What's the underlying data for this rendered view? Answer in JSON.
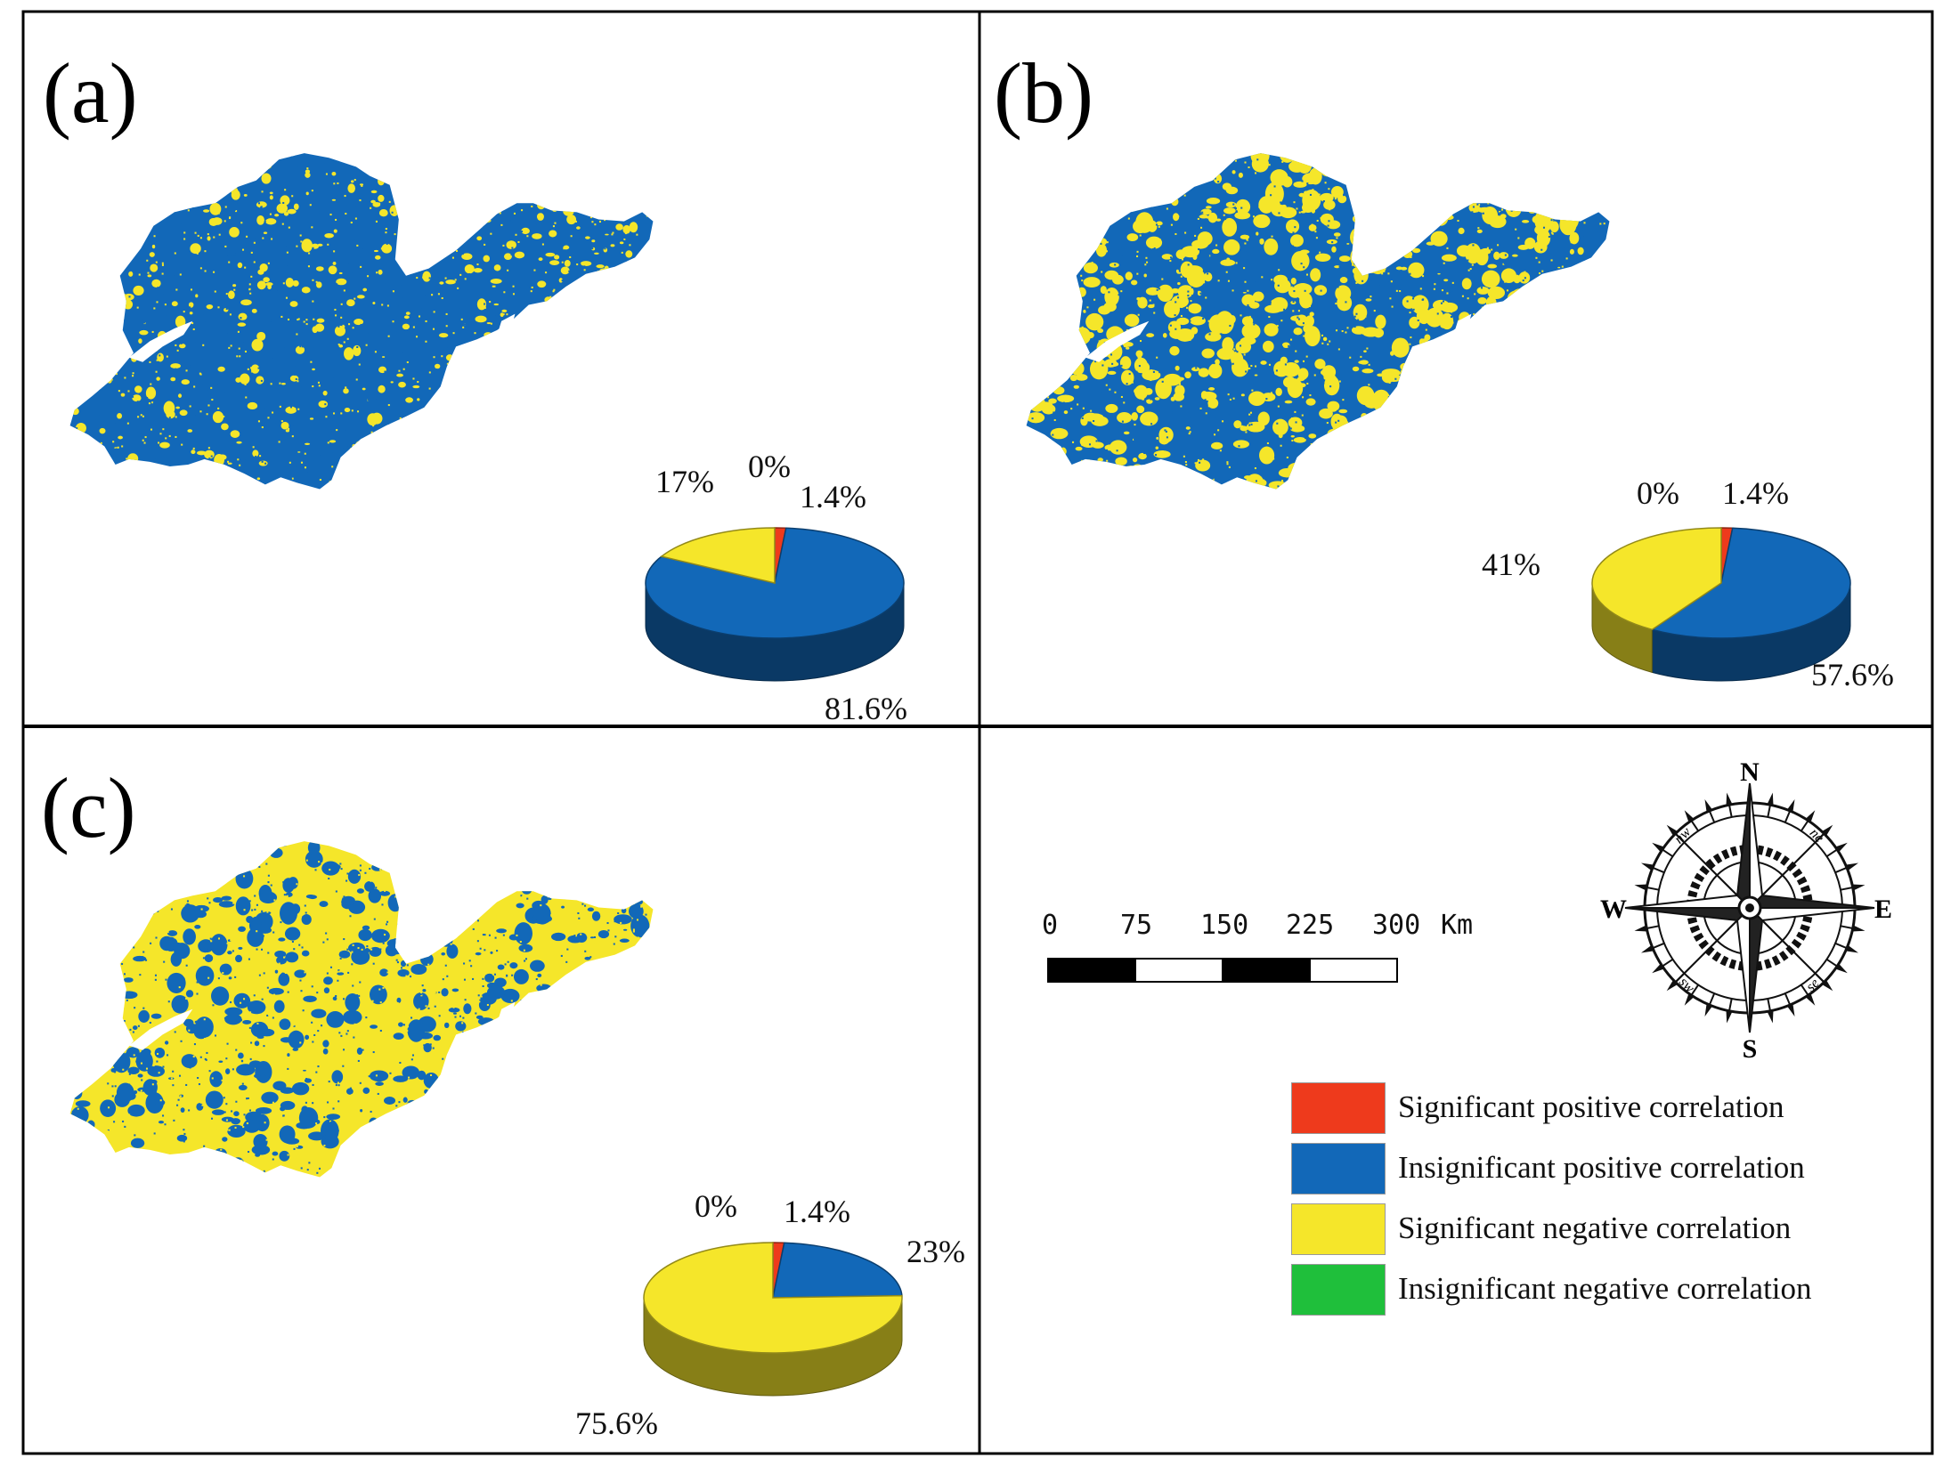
{
  "panels": [
    {
      "label": "(a)",
      "dominant": "#1268b8",
      "minor": "#f5e62a",
      "pie": {
        "segments": [
          {
            "name": "Significant positive correlation",
            "pct": 1.4,
            "label": "1.4%"
          },
          {
            "name": "Insignificant positive correlation",
            "pct": 81.6,
            "label": "81.6%"
          },
          {
            "name": "Significant negative correlation",
            "pct": 17,
            "label": "17%"
          },
          {
            "name": "Insignificant negative correlation",
            "pct": 0,
            "label": "0%"
          }
        ]
      }
    },
    {
      "label": "(b)",
      "dominant": "#1268b8",
      "minor": "#f5e62a",
      "pie": {
        "segments": [
          {
            "name": "Significant positive correlation",
            "pct": 1.4,
            "label": "1.4%"
          },
          {
            "name": "Insignificant positive correlation",
            "pct": 57.6,
            "label": "57.6%"
          },
          {
            "name": "Significant negative correlation",
            "pct": 41,
            "label": "41%"
          },
          {
            "name": "Insignificant negative correlation",
            "pct": 0,
            "label": "0%"
          }
        ]
      }
    },
    {
      "label": "(c)",
      "dominant": "#f5e62a",
      "minor": "#1268b8",
      "pie": {
        "segments": [
          {
            "name": "Significant positive correlation",
            "pct": 1.4,
            "label": "1.4%"
          },
          {
            "name": "Insignificant positive correlation",
            "pct": 23,
            "label": "23%"
          },
          {
            "name": "Significant negative correlation",
            "pct": 75.6,
            "label": "75.6%"
          },
          {
            "name": "Insignificant negative correlation",
            "pct": 0,
            "label": "0%"
          }
        ]
      }
    }
  ],
  "scale_bar": {
    "ticks": [
      "0",
      "75",
      "150",
      "225",
      "300"
    ],
    "unit": "Km"
  },
  "compass": {
    "n": "N",
    "s": "S",
    "e": "E",
    "w": "W",
    "ne": "ne",
    "nw": "nw",
    "se": "se",
    "sw": "sw"
  },
  "legend": [
    {
      "label": "Significant positive correlation",
      "color": "#ee3a1c"
    },
    {
      "label": "Insignificant positive correlation",
      "color": "#1268b8"
    },
    {
      "label": "Significant negative correlation",
      "color": "#f5e62a"
    },
    {
      "label": "Insignificant negative correlation",
      "color": "#1fbf3b"
    }
  ]
}
